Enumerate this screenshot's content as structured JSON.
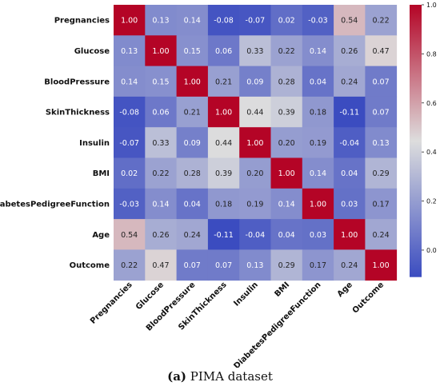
{
  "chart_data": {
    "type": "heatmap",
    "variables": [
      "Pregnancies",
      "Glucose",
      "BloodPressure",
      "SkinThickness",
      "Insulin",
      "BMI",
      "DiabetesPedigreeFunction",
      "Age",
      "Outcome"
    ],
    "matrix": [
      [
        1.0,
        0.13,
        0.14,
        -0.08,
        -0.07,
        0.02,
        -0.03,
        0.54,
        0.22
      ],
      [
        0.13,
        1.0,
        0.15,
        0.06,
        0.33,
        0.22,
        0.14,
        0.26,
        0.47
      ],
      [
        0.14,
        0.15,
        1.0,
        0.21,
        0.09,
        0.28,
        0.04,
        0.24,
        0.07
      ],
      [
        -0.08,
        0.06,
        0.21,
        1.0,
        0.44,
        0.39,
        0.18,
        -0.11,
        0.07
      ],
      [
        -0.07,
        0.33,
        0.09,
        0.44,
        1.0,
        0.2,
        0.19,
        -0.04,
        0.13
      ],
      [
        0.02,
        0.22,
        0.28,
        0.39,
        0.2,
        1.0,
        0.14,
        0.04,
        0.29
      ],
      [
        -0.03,
        0.14,
        0.04,
        0.18,
        0.19,
        0.14,
        1.0,
        0.03,
        0.17
      ],
      [
        0.54,
        0.26,
        0.24,
        -0.11,
        -0.04,
        0.04,
        0.03,
        1.0,
        0.24
      ],
      [
        0.22,
        0.47,
        0.07,
        0.07,
        0.13,
        0.29,
        0.17,
        0.24,
        1.0
      ]
    ],
    "colorbar_range": [
      -0.11,
      1.0
    ],
    "colorbar_ticks": [
      "1.0",
      "0.8",
      "0.6",
      "0.4",
      "0.2",
      "0.0"
    ],
    "colormap": "coolwarm",
    "colormap_stops": [
      "#3b4cc0",
      "#dddddd",
      "#b40426"
    ],
    "annotations": true
  },
  "caption": {
    "label": "(a)",
    "text": " PIMA dataset"
  }
}
